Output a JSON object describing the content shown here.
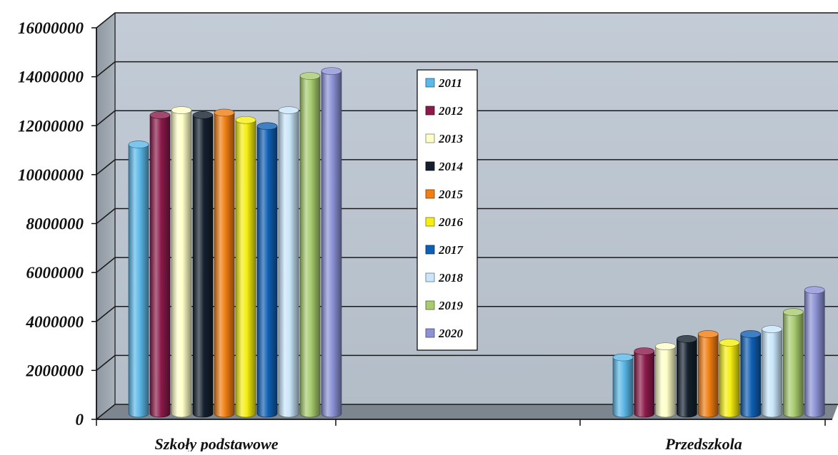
{
  "chart_data": {
    "type": "bar",
    "categories": [
      "Szkoły podstawowe",
      "Przedszkola"
    ],
    "series": [
      {
        "name": "2011",
        "color": "#5BB8E8",
        "values": [
          11000000,
          2300000
        ]
      },
      {
        "name": "2012",
        "color": "#8B1A4A",
        "values": [
          12200000,
          2550000
        ]
      },
      {
        "name": "2013",
        "color": "#FFFFC8",
        "values": [
          12400000,
          2750000
        ]
      },
      {
        "name": "2014",
        "color": "#14202E",
        "values": [
          12200000,
          3050000
        ]
      },
      {
        "name": "2015",
        "color": "#F07E12",
        "values": [
          12300000,
          3250000
        ]
      },
      {
        "name": "2016",
        "color": "#F5EE12",
        "values": [
          12000000,
          2900000
        ]
      },
      {
        "name": "2017",
        "color": "#0F5FB3",
        "values": [
          11750000,
          3250000
        ]
      },
      {
        "name": "2018",
        "color": "#C9E6FA",
        "values": [
          12400000,
          3450000
        ]
      },
      {
        "name": "2019",
        "color": "#A8CB6E",
        "values": [
          13800000,
          4150000
        ]
      },
      {
        "name": "2020",
        "color": "#8C92D6",
        "values": [
          14000000,
          5050000
        ]
      }
    ],
    "ylim": [
      0,
      16000000
    ],
    "y_ticks": [
      "0",
      "2000000",
      "4000000",
      "6000000",
      "8000000",
      "10000000",
      "12000000",
      "14000000",
      "16000000"
    ],
    "title": "",
    "xlabel": "",
    "ylabel": "",
    "grid": true,
    "legend_position": "center"
  }
}
